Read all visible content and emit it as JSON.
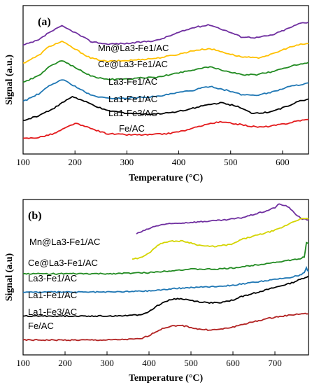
{
  "chart_data": [
    {
      "type": "line",
      "panel_label": "(a)",
      "xlabel": "Temperature (°C)",
      "ylabel": "Signal (a.u.)",
      "xlim": [
        100,
        650
      ],
      "xticks": [
        100,
        200,
        300,
        400,
        500,
        600
      ],
      "yticks_shown": false,
      "grid": false,
      "legend": "inline labels above each curve",
      "series": [
        {
          "name": "Mn@La3-Fe1/AC",
          "color": "#7030a0",
          "x": [
            100,
            130,
            150,
            175,
            200,
            230,
            260,
            300,
            330,
            360,
            400,
            430,
            460,
            500,
            520,
            550,
            580,
            610,
            635,
            650
          ],
          "y": [
            5.05,
            5.25,
            5.55,
            5.8,
            5.55,
            5.2,
            5.1,
            5.12,
            5.18,
            5.25,
            5.55,
            5.75,
            5.85,
            5.55,
            5.38,
            5.35,
            5.45,
            5.7,
            5.92,
            5.95
          ]
        },
        {
          "name": "Ce@La3-Fe1/AC",
          "color": "#ffc000",
          "x": [
            100,
            130,
            150,
            175,
            200,
            230,
            260,
            300,
            330,
            360,
            400,
            430,
            460,
            500,
            520,
            550,
            580,
            610,
            635,
            650
          ],
          "y": [
            4.35,
            4.65,
            5.0,
            5.2,
            4.9,
            4.55,
            4.42,
            4.45,
            4.5,
            4.55,
            4.7,
            4.85,
            4.92,
            4.7,
            4.6,
            4.55,
            4.7,
            4.95,
            5.08,
            5.12
          ]
        },
        {
          "name": "La3-Fe1/AC",
          "color": "#228b22",
          "x": [
            100,
            130,
            150,
            175,
            200,
            230,
            260,
            300,
            330,
            360,
            400,
            430,
            460,
            500,
            520,
            550,
            580,
            610,
            635,
            650
          ],
          "y": [
            3.6,
            3.85,
            4.2,
            4.45,
            4.2,
            3.85,
            3.72,
            3.72,
            3.78,
            3.8,
            3.98,
            4.1,
            4.2,
            4.0,
            3.9,
            3.9,
            4.02,
            4.2,
            4.32,
            4.38
          ]
        },
        {
          "name": "La1-Fe1/AC",
          "color": "#1f77b4",
          "x": [
            100,
            130,
            150,
            175,
            200,
            230,
            260,
            300,
            330,
            360,
            400,
            430,
            460,
            500,
            520,
            550,
            580,
            610,
            635,
            650
          ],
          "y": [
            2.85,
            3.15,
            3.45,
            3.72,
            3.45,
            3.1,
            2.98,
            2.98,
            3.02,
            3.05,
            3.2,
            3.3,
            3.45,
            3.25,
            3.12,
            3.1,
            3.22,
            3.42,
            3.52,
            3.58
          ]
        },
        {
          "name": "La1-Fe3/AC",
          "color": "#000000",
          "x": [
            100,
            130,
            160,
            195,
            225,
            260,
            300,
            340,
            380,
            420,
            450,
            480,
            510,
            540,
            570,
            600,
            630,
            650
          ],
          "y": [
            2.1,
            2.3,
            2.6,
            3.05,
            2.8,
            2.5,
            2.4,
            2.35,
            2.4,
            2.55,
            2.7,
            2.8,
            2.68,
            2.4,
            2.42,
            2.6,
            2.85,
            2.95
          ]
        },
        {
          "name": "Fe/AC",
          "color": "#e31a1c",
          "x": [
            100,
            130,
            160,
            200,
            230,
            260,
            300,
            340,
            380,
            420,
            450,
            480,
            510,
            540,
            560,
            580,
            610,
            630,
            650
          ],
          "y": [
            1.4,
            1.45,
            1.6,
            2.0,
            1.8,
            1.6,
            1.55,
            1.55,
            1.6,
            1.75,
            1.95,
            2.05,
            1.98,
            1.88,
            1.85,
            1.9,
            2.0,
            2.1,
            2.15
          ]
        }
      ]
    },
    {
      "type": "line",
      "panel_label": "(b)",
      "xlabel": "Temperature (°C)",
      "ylabel": "Signal (a.u)",
      "xlim": [
        100,
        780
      ],
      "xticks": [
        100,
        200,
        300,
        400,
        500,
        600,
        700
      ],
      "yticks_shown": false,
      "grid": false,
      "legend": "inline labels above each curve",
      "series": [
        {
          "name": "Mn@La3-Fe1/AC",
          "color": "#7030a0",
          "x": [
            370,
            390,
            410,
            430,
            460,
            500,
            540,
            580,
            620,
            650,
            680,
            700,
            710,
            730,
            750,
            765,
            780
          ],
          "y": [
            5.7,
            5.85,
            6.0,
            6.1,
            6.15,
            6.2,
            6.25,
            6.3,
            6.4,
            6.55,
            6.7,
            6.85,
            7.0,
            6.9,
            6.55,
            6.35,
            6.3
          ]
        },
        {
          "name": "Ce@La3-Fe1/AC",
          "color": "#d4d400",
          "x": [
            360,
            380,
            400,
            420,
            440,
            460,
            480,
            500,
            520,
            540,
            560,
            580,
            600,
            620,
            650,
            680,
            700,
            720,
            740,
            760,
            780
          ],
          "y": [
            4.6,
            4.65,
            4.85,
            5.2,
            5.35,
            5.38,
            5.38,
            5.3,
            5.2,
            5.15,
            5.15,
            5.2,
            5.25,
            5.45,
            5.6,
            5.75,
            5.85,
            6.0,
            6.2,
            6.35,
            6.35
          ]
        },
        {
          "name": "La3-Fe1/AC",
          "color": "#228b22",
          "x": [
            100,
            200,
            300,
            400,
            460,
            500,
            560,
            600,
            640,
            680,
            700,
            720,
            740,
            760,
            770,
            775,
            780
          ],
          "y": [
            3.95,
            3.95,
            3.95,
            4.0,
            4.1,
            4.15,
            4.15,
            4.2,
            4.3,
            4.4,
            4.45,
            4.5,
            4.55,
            4.6,
            4.7,
            5.3,
            5.3
          ]
        },
        {
          "name": "La1-Fe1/AC",
          "color": "#1f77b4",
          "x": [
            100,
            200,
            300,
            400,
            460,
            500,
            560,
            600,
            640,
            680,
            700,
            720,
            740,
            760,
            770,
            775,
            780
          ],
          "y": [
            3.15,
            3.15,
            3.15,
            3.2,
            3.3,
            3.35,
            3.4,
            3.45,
            3.55,
            3.65,
            3.7,
            3.75,
            3.8,
            3.9,
            4.0,
            4.2,
            4.05
          ]
        },
        {
          "name": "La1-Fe3/AC",
          "color": "#000000",
          "x": [
            100,
            200,
            300,
            380,
            400,
            420,
            440,
            460,
            480,
            500,
            520,
            540,
            560,
            580,
            600,
            620,
            650,
            680,
            700,
            720,
            740,
            760,
            780
          ],
          "y": [
            2.1,
            2.1,
            2.1,
            2.15,
            2.3,
            2.55,
            2.75,
            2.85,
            2.85,
            2.78,
            2.72,
            2.68,
            2.68,
            2.72,
            2.8,
            2.95,
            3.1,
            3.25,
            3.35,
            3.45,
            3.55,
            3.7,
            3.85
          ]
        },
        {
          "name": "Fe/AC",
          "color": "#b22222",
          "x": [
            100,
            200,
            300,
            380,
            400,
            420,
            440,
            460,
            480,
            500,
            520,
            540,
            560,
            580,
            600,
            620,
            650,
            680,
            700,
            720,
            740,
            760,
            780
          ],
          "y": [
            1.05,
            1.05,
            1.05,
            1.1,
            1.25,
            1.45,
            1.6,
            1.68,
            1.68,
            1.6,
            1.52,
            1.5,
            1.5,
            1.55,
            1.62,
            1.72,
            1.85,
            1.98,
            2.05,
            2.1,
            2.15,
            2.2,
            2.2
          ]
        }
      ]
    }
  ]
}
